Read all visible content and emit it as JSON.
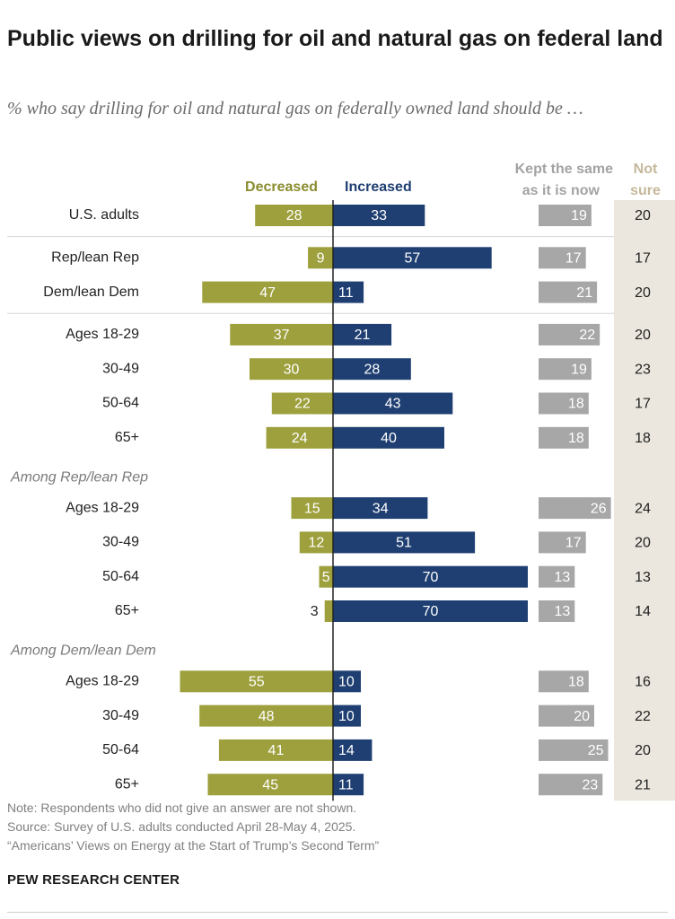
{
  "title": "Public views on drilling for oil and natural gas on federal land",
  "subtitle": "% who say drilling for oil and natural gas on federally owned land should be …",
  "colors": {
    "decreased": "#9ea03d",
    "increased": "#1f3f72",
    "same": "#a7a7a7",
    "not_sure_panel": "#ebe7de",
    "decreased_label": "#8a8c2f",
    "same_label": "#a3a3a3",
    "not_sure_label": "#c5b89b"
  },
  "chart_data": {
    "type": "bar",
    "subtype": "diverging-bar-with-side-columns",
    "columns": {
      "decreased": "Decreased",
      "increased": "Increased",
      "same_line1": "Kept the same",
      "same_line2": "as it is now",
      "not_sure_line1": "Not",
      "not_sure_line2": "sure"
    },
    "groups": [
      {
        "header": "",
        "rows": [
          {
            "label": "U.S. adults",
            "decreased": 28,
            "increased": 33,
            "same": 19,
            "not_sure": 20
          }
        ]
      },
      {
        "header": "",
        "rows": [
          {
            "label": "Rep/lean Rep",
            "decreased": 9,
            "increased": 57,
            "same": 17,
            "not_sure": 17
          },
          {
            "label": "Dem/lean Dem",
            "decreased": 47,
            "increased": 11,
            "same": 21,
            "not_sure": 20
          }
        ]
      },
      {
        "header": "",
        "rows": [
          {
            "label": "Ages 18-29",
            "decreased": 37,
            "increased": 21,
            "same": 22,
            "not_sure": 20
          },
          {
            "label": "30-49",
            "decreased": 30,
            "increased": 28,
            "same": 19,
            "not_sure": 23
          },
          {
            "label": "50-64",
            "decreased": 22,
            "increased": 43,
            "same": 18,
            "not_sure": 17
          },
          {
            "label": "65+",
            "decreased": 24,
            "increased": 40,
            "same": 18,
            "not_sure": 18
          }
        ]
      },
      {
        "header": "Among Rep/lean Rep",
        "rows": [
          {
            "label": "Ages 18-29",
            "decreased": 15,
            "increased": 34,
            "same": 26,
            "not_sure": 24
          },
          {
            "label": "30-49",
            "decreased": 12,
            "increased": 51,
            "same": 17,
            "not_sure": 20
          },
          {
            "label": "50-64",
            "decreased": 5,
            "increased": 70,
            "same": 13,
            "not_sure": 13
          },
          {
            "label": "65+",
            "decreased": 3,
            "increased": 70,
            "same": 13,
            "not_sure": 14
          }
        ]
      },
      {
        "header": "Among Dem/lean Dem",
        "rows": [
          {
            "label": "Ages 18-29",
            "decreased": 55,
            "increased": 10,
            "same": 18,
            "not_sure": 16
          },
          {
            "label": "30-49",
            "decreased": 48,
            "increased": 10,
            "same": 20,
            "not_sure": 22
          },
          {
            "label": "50-64",
            "decreased": 41,
            "increased": 14,
            "same": 25,
            "not_sure": 20
          },
          {
            "label": "65+",
            "decreased": 45,
            "increased": 11,
            "same": 23,
            "not_sure": 21
          }
        ]
      }
    ]
  },
  "note": {
    "line1": "Note: Respondents who did not give an answer are not shown.",
    "line2": "Source: Survey of U.S. adults conducted April 28-May 4, 2025.",
    "line3": "“Americans’ Views on Energy at the Start of Trump’s Second Term”"
  },
  "brand": "PEW RESEARCH CENTER"
}
